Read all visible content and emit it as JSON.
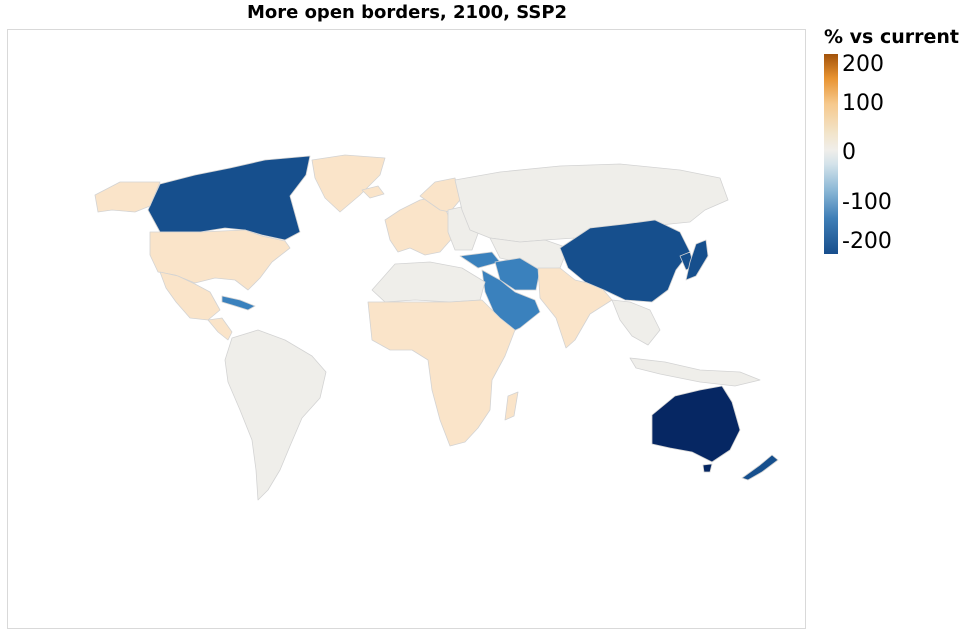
{
  "title": "More open borders, 2100, SSP2",
  "legend": {
    "title": "% vs current",
    "ticks": [
      "200",
      "100",
      "0",
      "-100",
      "-200"
    ]
  },
  "colors": {
    "neutral": "#efeeea",
    "light_orange": "#fae4c9",
    "mid_blue": "#3a81bd",
    "dark_blue": "#164f8d",
    "navy": "#062763"
  }
}
